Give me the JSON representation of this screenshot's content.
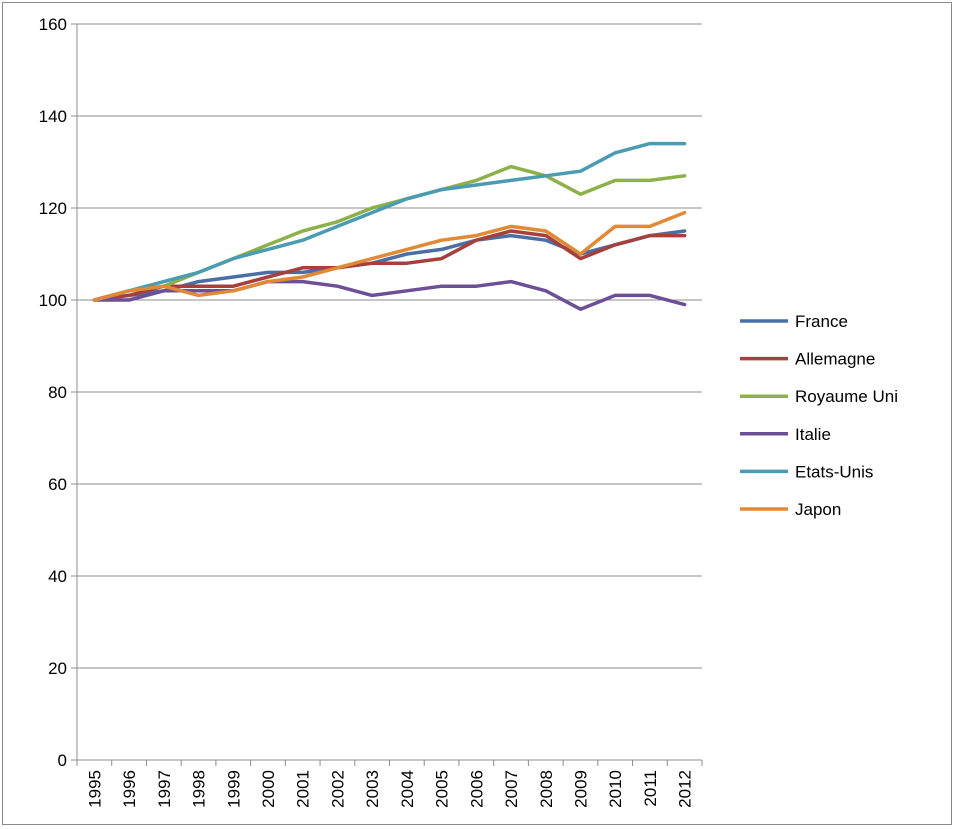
{
  "chart_data": {
    "type": "line",
    "title": "",
    "xlabel": "",
    "ylabel": "",
    "ylim": [
      0,
      160
    ],
    "yticks": [
      0,
      20,
      40,
      60,
      80,
      100,
      120,
      140,
      160
    ],
    "grid": "horizontal",
    "legend_position": "right",
    "categories": [
      "1995",
      "1996",
      "1997",
      "1998",
      "1999",
      "2000",
      "2001",
      "2002",
      "2003",
      "2004",
      "2005",
      "2006",
      "2007",
      "2008",
      "2009",
      "2010",
      "2011",
      "2012"
    ],
    "series": [
      {
        "name": "France",
        "color": "#4a6fa5",
        "values": [
          100,
          101,
          102,
          104,
          105,
          106,
          106,
          107,
          108,
          110,
          111,
          113,
          114,
          113,
          110,
          112,
          114,
          115
        ]
      },
      {
        "name": "Allemagne",
        "color": "#a6403c",
        "values": [
          100,
          101,
          103,
          103,
          103,
          105,
          107,
          107,
          108,
          108,
          109,
          113,
          115,
          114,
          109,
          112,
          114,
          114
        ]
      },
      {
        "name": "Royaume Uni",
        "color": "#8eb04a",
        "values": [
          100,
          102,
          103,
          106,
          109,
          112,
          115,
          117,
          120,
          122,
          124,
          126,
          129,
          127,
          123,
          126,
          126,
          127
        ]
      },
      {
        "name": "Italie",
        "color": "#6c4f96",
        "values": [
          100,
          100,
          102,
          102,
          102,
          104,
          104,
          103,
          101,
          102,
          103,
          103,
          104,
          102,
          98,
          101,
          101,
          99
        ]
      },
      {
        "name": "Etats-Unis",
        "color": "#4b9bb2",
        "values": [
          100,
          102,
          104,
          106,
          109,
          111,
          113,
          116,
          119,
          122,
          124,
          125,
          126,
          127,
          128,
          132,
          134,
          134
        ]
      },
      {
        "name": "Japon",
        "color": "#e08a36",
        "values": [
          100,
          102,
          103,
          101,
          102,
          104,
          105,
          107,
          109,
          111,
          113,
          114,
          116,
          115,
          110,
          116,
          116,
          119
        ]
      }
    ]
  }
}
